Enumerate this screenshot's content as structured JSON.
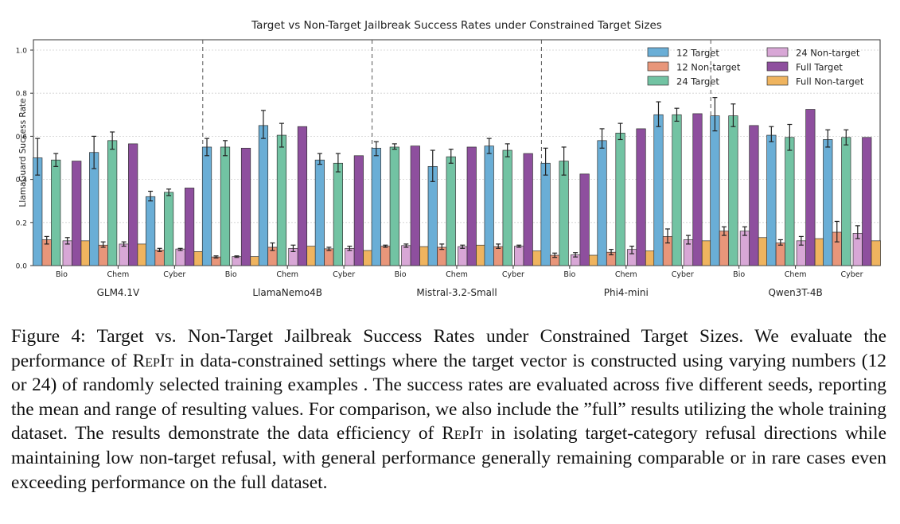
{
  "chart_data": {
    "type": "bar",
    "title": "Target vs Non-Target Jailbreak Success Rates under Constrained Target Sizes",
    "ylabel": "LlamaGuard Success Rate",
    "xlabel": "",
    "ylim": [
      0,
      1.05
    ],
    "yticks": [
      "0.0",
      "0.2",
      "0.4",
      "0.6",
      "0.8",
      "1.0"
    ],
    "grid": true,
    "legend_position": "top-right",
    "categories": [
      "Bio",
      "Chem",
      "Cyber"
    ],
    "models": [
      "GLM4.1V",
      "LlamaNemo4B",
      "Mistral-3.2-Small",
      "Phi4-mini",
      "Qwen3T-4B"
    ],
    "series": [
      {
        "name": "12 Target",
        "color": "#6aaed6"
      },
      {
        "name": "12 Non-target",
        "color": "#e8967a"
      },
      {
        "name": "24 Target",
        "color": "#72c3a3"
      },
      {
        "name": "24 Non-target",
        "color": "#d8a7d6"
      },
      {
        "name": "Full Target",
        "color": "#8e4f9e"
      },
      {
        "name": "Full Non-target",
        "color": "#efb45f"
      }
    ],
    "values": [
      [
        [
          0.5,
          0.12,
          0.49,
          0.115,
          0.485,
          0.115
        ],
        [
          0.525,
          0.095,
          0.58,
          0.1,
          0.565,
          0.1
        ],
        [
          0.32,
          0.072,
          0.34,
          0.077,
          0.36,
          0.065
        ]
      ],
      [
        [
          0.55,
          0.04,
          0.55,
          0.042,
          0.545,
          0.042
        ],
        [
          0.65,
          0.085,
          0.605,
          0.08,
          0.645,
          0.09
        ],
        [
          0.49,
          0.078,
          0.475,
          0.08,
          0.51,
          0.07
        ]
      ],
      [
        [
          0.545,
          0.09,
          0.55,
          0.093,
          0.555,
          0.088
        ],
        [
          0.46,
          0.085,
          0.505,
          0.088,
          0.55,
          0.095
        ],
        [
          0.555,
          0.088,
          0.535,
          0.09,
          0.52,
          0.068
        ]
      ],
      [
        [
          0.475,
          0.048,
          0.485,
          0.05,
          0.425,
          0.048
        ],
        [
          0.58,
          0.062,
          0.615,
          0.075,
          0.635,
          0.068
        ],
        [
          0.7,
          0.135,
          0.7,
          0.12,
          0.705,
          0.115
        ]
      ],
      [
        [
          0.695,
          0.16,
          0.695,
          0.16,
          0.65,
          0.13
        ],
        [
          0.605,
          0.105,
          0.595,
          0.115,
          0.725,
          0.125
        ],
        [
          0.585,
          0.155,
          0.595,
          0.15,
          0.595,
          0.115
        ]
      ]
    ],
    "errors": [
      [
        [
          [
            0.42,
            0.59
          ],
          [
            0.1,
            0.135
          ],
          [
            0.46,
            0.52
          ],
          [
            0.1,
            0.13
          ],
          null,
          null
        ],
        [
          [
            0.45,
            0.6
          ],
          [
            0.085,
            0.11
          ],
          [
            0.54,
            0.62
          ],
          [
            0.09,
            0.11
          ],
          null,
          null
        ],
        [
          [
            0.3,
            0.345
          ],
          [
            0.065,
            0.08
          ],
          [
            0.325,
            0.355
          ],
          [
            0.07,
            0.08
          ],
          null,
          null
        ]
      ],
      [
        [
          [
            0.51,
            0.59
          ],
          [
            0.035,
            0.045
          ],
          [
            0.51,
            0.58
          ],
          [
            0.038,
            0.045
          ],
          null,
          null
        ],
        [
          [
            0.59,
            0.72
          ],
          [
            0.07,
            0.105
          ],
          [
            0.55,
            0.66
          ],
          [
            0.065,
            0.095
          ],
          null,
          null
        ],
        [
          [
            0.47,
            0.52
          ],
          [
            0.07,
            0.085
          ],
          [
            0.435,
            0.52
          ],
          [
            0.07,
            0.09
          ],
          null,
          null
        ]
      ],
      [
        [
          [
            0.51,
            0.575
          ],
          [
            0.085,
            0.095
          ],
          [
            0.54,
            0.565
          ],
          [
            0.085,
            0.1
          ],
          null,
          null
        ],
        [
          [
            0.39,
            0.535
          ],
          [
            0.075,
            0.1
          ],
          [
            0.475,
            0.54
          ],
          [
            0.08,
            0.095
          ],
          null,
          null
        ],
        [
          [
            0.52,
            0.59
          ],
          [
            0.08,
            0.1
          ],
          [
            0.505,
            0.565
          ],
          [
            0.085,
            0.095
          ],
          null,
          null
        ]
      ],
      [
        [
          [
            0.42,
            0.545
          ],
          [
            0.038,
            0.058
          ],
          [
            0.42,
            0.55
          ],
          [
            0.04,
            0.06
          ],
          null,
          null
        ],
        [
          [
            0.545,
            0.635
          ],
          [
            0.05,
            0.075
          ],
          [
            0.585,
            0.66
          ],
          [
            0.055,
            0.09
          ],
          null,
          null
        ],
        [
          [
            0.645,
            0.76
          ],
          [
            0.105,
            0.17
          ],
          [
            0.67,
            0.73
          ],
          [
            0.1,
            0.14
          ],
          null,
          null
        ]
      ],
      [
        [
          [
            0.625,
            0.78
          ],
          [
            0.14,
            0.18
          ],
          [
            0.645,
            0.75
          ],
          [
            0.14,
            0.18
          ],
          null,
          null
        ],
        [
          [
            0.575,
            0.645
          ],
          [
            0.095,
            0.12
          ],
          [
            0.535,
            0.655
          ],
          [
            0.095,
            0.135
          ],
          null,
          null
        ],
        [
          [
            0.55,
            0.63
          ],
          [
            0.11,
            0.205
          ],
          [
            0.56,
            0.63
          ],
          [
            0.125,
            0.185
          ],
          null,
          null
        ]
      ]
    ]
  },
  "caption": {
    "label": "Figure 4:",
    "p1": " Target vs. Non-Target Jailbreak Success Rates under Constrained Target Sizes. We evaluate the performance of ",
    "name1": "RepIt",
    "p2": " in data-constrained settings where the target vector is constructed using varying numbers (12 or 24) of randomly selected training examples . The success rates are evaluated across five different seeds, reporting the mean and range of resulting values. For comparison, we also include the ”full” results utilizing the whole training dataset. The results demonstrate the data efficiency of ",
    "name2": "RepIt",
    "p3": " in isolating target-category refusal directions while maintaining low non-target refusal, with general performance generally remaining comparable or in rare cases even exceeding performance on the full dataset."
  }
}
